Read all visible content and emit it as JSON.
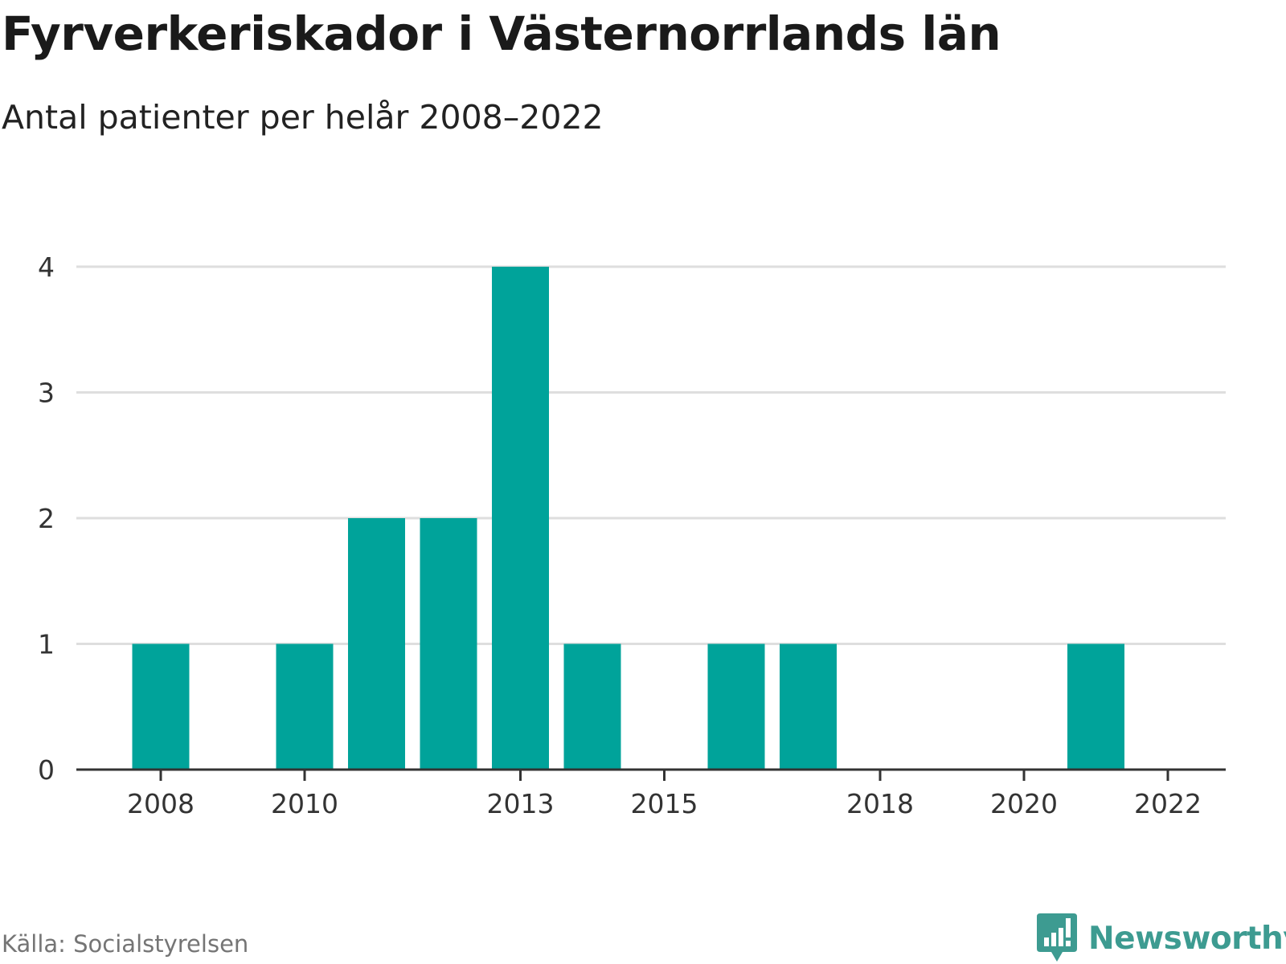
{
  "header": {
    "title": "Fyrverkeriskador i Västernorrlands län",
    "subtitle": "Antal patienter per helår 2008–2022"
  },
  "footer": {
    "source": "Källa: Socialstyrelsen",
    "brand": "Newsworthy",
    "brand_icon": "newsworthy-logo-icon"
  },
  "colors": {
    "bar": "#00a39a",
    "grid": "#dedede",
    "axis": "#333333",
    "tick_text": "#333333",
    "brand": "#3d9b91"
  },
  "chart_data": {
    "type": "bar",
    "title": "Fyrverkeriskador i Västernorrlands län",
    "subtitle": "Antal patienter per helår 2008–2022",
    "xlabel": "",
    "ylabel": "",
    "categories": [
      "2008",
      "2009",
      "2010",
      "2011",
      "2012",
      "2013",
      "2014",
      "2015",
      "2016",
      "2017",
      "2018",
      "2019",
      "2020",
      "2021",
      "2022"
    ],
    "values": [
      1,
      0,
      1,
      2,
      2,
      4,
      1,
      0,
      1,
      1,
      0,
      0,
      0,
      1,
      0
    ],
    "x_tick_labels": [
      "2008",
      "2010",
      "2013",
      "2015",
      "2018",
      "2020",
      "2022"
    ],
    "y_ticks": [
      "0",
      "1",
      "2",
      "3",
      "4"
    ],
    "ylim": [
      0,
      4
    ],
    "grid": true,
    "legend": "none"
  }
}
